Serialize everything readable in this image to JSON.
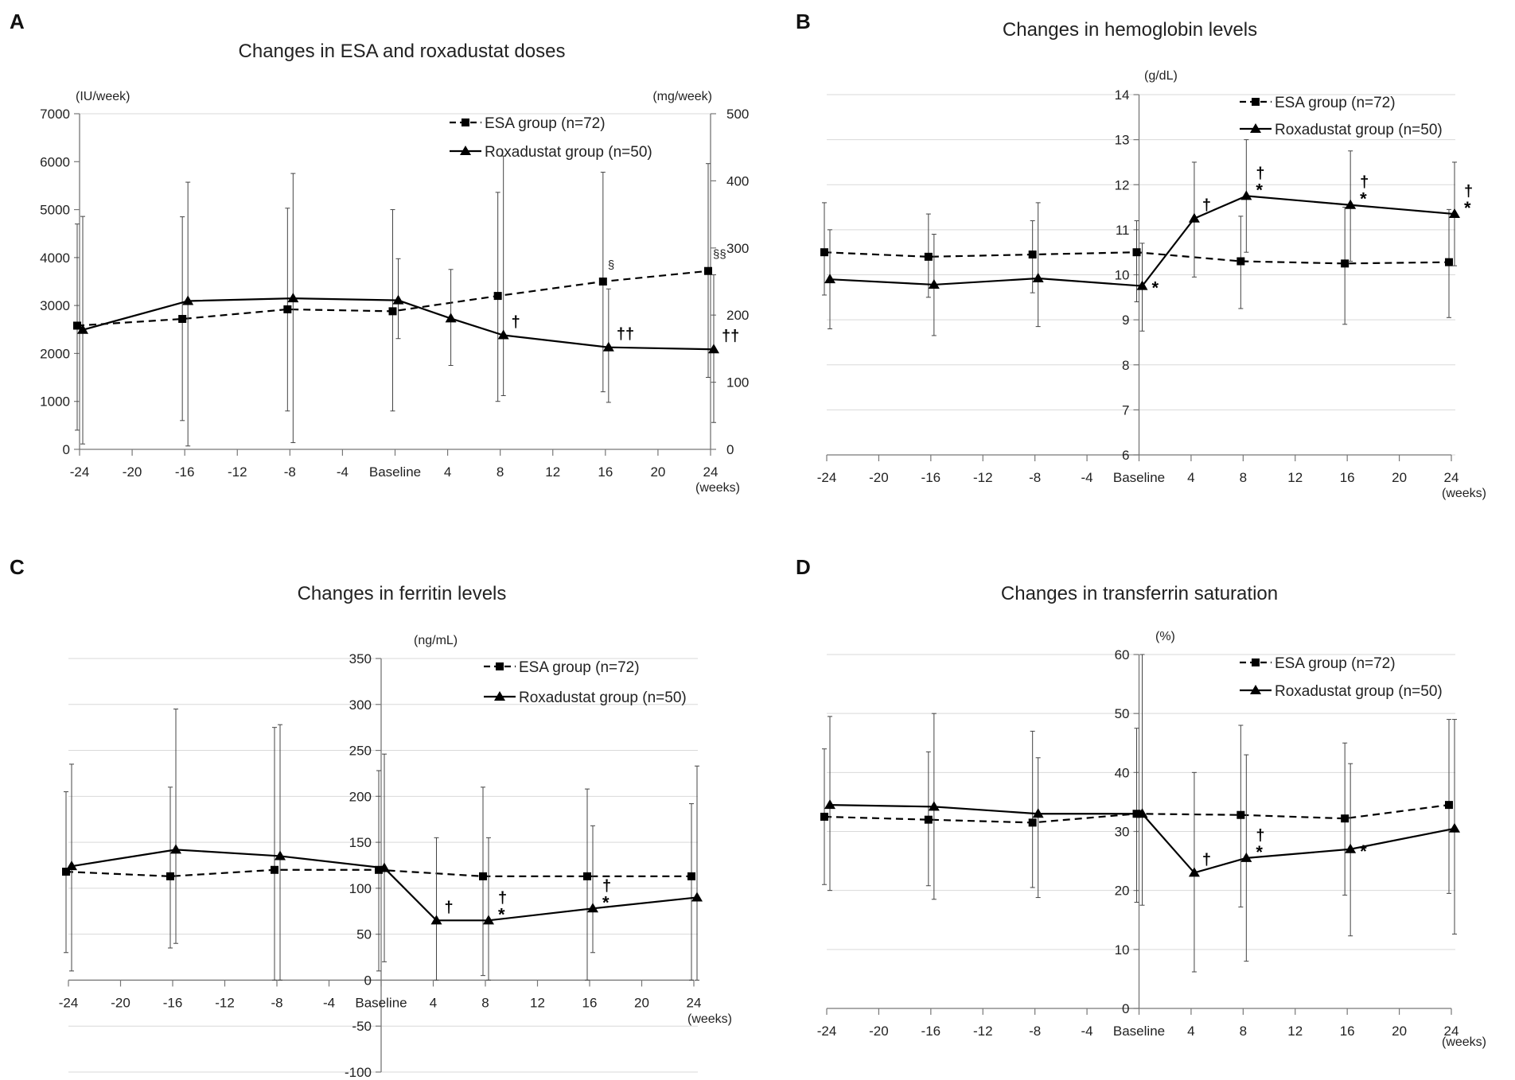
{
  "chart_data": [
    {
      "panel_label": "A",
      "type": "line",
      "title": "Changes in ESA and roxadustat doses",
      "xlabel": "(weeks)",
      "ylabel_left": "(IU/week)",
      "ylabel_right": "(mg/week)",
      "ylim_left": [
        0,
        7000
      ],
      "ylim_right": [
        0,
        500
      ],
      "xlim": [
        -24,
        24
      ],
      "x_ticks": [
        -24,
        -20,
        -16,
        -12,
        -8,
        -4,
        0,
        4,
        8,
        12,
        16,
        20,
        24
      ],
      "x_tick_labels": [
        "-24",
        "-20",
        "-16",
        "-12",
        "-8",
        "-4",
        "Baseline",
        "4",
        "8",
        "12",
        "16",
        "20",
        "24"
      ],
      "y_ticks_left": [
        0,
        1000,
        2000,
        3000,
        4000,
        5000,
        6000,
        7000
      ],
      "y_tick_labels_left": [
        "0",
        "1000",
        "2000",
        "3000",
        "4000",
        "5000",
        "6000",
        "7000"
      ],
      "y_ticks_right": [
        0,
        100,
        200,
        300,
        400,
        500
      ],
      "y_tick_labels_right": [
        "0",
        "100",
        "200",
        "300",
        "400",
        "500"
      ],
      "grid": "none",
      "legend": [
        {
          "label": "ESA group (n=72)",
          "style": "dashed",
          "marker": "square"
        },
        {
          "label": "Roxadustat group (n=50)",
          "style": "solid",
          "marker": "triangle"
        }
      ],
      "series": [
        {
          "name": "ESA group (n=72)",
          "axis": "left",
          "style": "dashed",
          "marker": "square",
          "x": [
            -24,
            -16,
            -8,
            0,
            8,
            16,
            24
          ],
          "values": [
            2580,
            2720,
            2920,
            2880,
            3200,
            3500,
            3720
          ],
          "err_low": [
            400,
            600,
            800,
            800,
            1000,
            1200,
            1500
          ],
          "err_high": [
            4700,
            4850,
            5030,
            5000,
            5360,
            5780,
            5960
          ]
        },
        {
          "name": "Roxadustat group (n=50)",
          "axis": "right",
          "style": "solid",
          "marker": "triangle",
          "x": [
            -24,
            -16,
            -8,
            0,
            4,
            8,
            16,
            24
          ],
          "values": [
            178,
            221,
            225,
            222,
            195,
            170,
            152,
            149
          ],
          "err_low": [
            8,
            5,
            10,
            165,
            125,
            80,
            70,
            40
          ],
          "err_high": [
            347,
            398,
            411,
            284,
            268,
            437,
            239,
            260
          ]
        }
      ],
      "annotations": [
        {
          "text": "†",
          "x": 8,
          "series": "Roxadustat group (n=50)"
        },
        {
          "text": "††",
          "x": 16,
          "series": "Roxadustat group (n=50)"
        },
        {
          "text": "††",
          "x": 24,
          "series": "Roxadustat group (n=50)"
        },
        {
          "text": "§",
          "x": 16,
          "series": "ESA group (n=72)"
        },
        {
          "text": "§§",
          "x": 24,
          "series": "ESA group (n=72)"
        }
      ]
    },
    {
      "panel_label": "B",
      "type": "line",
      "title": "Changes in hemoglobin levels",
      "xlabel": "(weeks)",
      "ylabel_left": "(g/dL)",
      "ylim_left": [
        6,
        14
      ],
      "xlim": [
        -24,
        24
      ],
      "x_ticks": [
        -24,
        -20,
        -16,
        -12,
        -8,
        -4,
        0,
        4,
        8,
        12,
        16,
        20,
        24
      ],
      "x_tick_labels": [
        "-24",
        "-20",
        "-16",
        "-12",
        "-8",
        "-4",
        "Baseline",
        "4",
        "8",
        "12",
        "16",
        "20",
        "24"
      ],
      "y_ticks_left": [
        6,
        7,
        8,
        9,
        10,
        11,
        12,
        13,
        14
      ],
      "y_tick_labels_left": [
        "6",
        "7",
        "8",
        "9",
        "10",
        "11",
        "12",
        "13",
        "14"
      ],
      "grid": "horizontal",
      "legend": [
        {
          "label": "ESA group (n=72)",
          "style": "dashed",
          "marker": "square"
        },
        {
          "label": "Roxadustat group (n=50)",
          "style": "solid",
          "marker": "triangle"
        }
      ],
      "series": [
        {
          "name": "ESA group (n=72)",
          "axis": "left",
          "style": "dashed",
          "marker": "square",
          "x": [
            -24,
            -16,
            -8,
            0,
            8,
            16,
            24
          ],
          "values": [
            10.5,
            10.4,
            10.45,
            10.5,
            10.3,
            10.25,
            10.28
          ],
          "err_low": [
            9.55,
            9.5,
            9.6,
            9.4,
            9.25,
            8.9,
            9.05
          ],
          "err_high": [
            11.6,
            11.35,
            11.2,
            11.2,
            11.3,
            11.5,
            11.45
          ]
        },
        {
          "name": "Roxadustat group (n=50)",
          "axis": "left",
          "style": "solid",
          "marker": "triangle",
          "x": [
            -24,
            -16,
            -8,
            0,
            4,
            8,
            16,
            24
          ],
          "values": [
            9.9,
            9.78,
            9.92,
            9.75,
            11.25,
            11.75,
            11.55,
            11.35
          ],
          "err_low": [
            8.8,
            8.65,
            8.85,
            8.75,
            9.95,
            10.5,
            10.3,
            10.2
          ],
          "err_high": [
            11.0,
            10.9,
            11.6,
            10.7,
            12.5,
            13.0,
            12.75,
            12.5
          ]
        }
      ],
      "annotations": [
        {
          "text": "*",
          "x": 0,
          "series": "Roxadustat group (n=50)"
        },
        {
          "text": "†",
          "x": 4,
          "series": "Roxadustat group (n=50)"
        },
        {
          "text": "†*",
          "x": 8,
          "series": "Roxadustat group (n=50)"
        },
        {
          "text": "†*",
          "x": 16,
          "series": "Roxadustat group (n=50)"
        },
        {
          "text": "†*",
          "x": 24,
          "series": "Roxadustat group (n=50)"
        }
      ]
    },
    {
      "panel_label": "C",
      "type": "line",
      "title": "Changes in ferritin levels",
      "xlabel": "(weeks)",
      "ylabel_left": "(ng/mL)",
      "ylim_left": [
        -100,
        350
      ],
      "xlim": [
        -24,
        24
      ],
      "x_ticks": [
        -24,
        -20,
        -16,
        -12,
        -8,
        -4,
        0,
        4,
        8,
        12,
        16,
        20,
        24
      ],
      "x_tick_labels": [
        "-24",
        "-20",
        "-16",
        "-12",
        "-8",
        "-4",
        "Baseline",
        "4",
        "8",
        "12",
        "16",
        "20",
        "24"
      ],
      "y_ticks_left": [
        -100,
        -50,
        0,
        50,
        100,
        150,
        200,
        250,
        300,
        350
      ],
      "y_tick_labels_left": [
        "-100",
        "-50",
        "0",
        "50",
        "100",
        "150",
        "200",
        "250",
        "300",
        "350"
      ],
      "grid": "horizontal",
      "legend": [
        {
          "label": "ESA group (n=72)",
          "style": "dashed",
          "marker": "square"
        },
        {
          "label": "Roxadustat group (n=50)",
          "style": "solid",
          "marker": "triangle"
        }
      ],
      "series": [
        {
          "name": "ESA group (n=72)",
          "axis": "left",
          "style": "dashed",
          "marker": "square",
          "x": [
            -24,
            -16,
            -8,
            0,
            8,
            16,
            24
          ],
          "values": [
            118,
            113,
            120,
            120,
            113,
            113,
            113
          ],
          "err_low": [
            30,
            35,
            0,
            10,
            5,
            0,
            0
          ],
          "err_high": [
            205,
            210,
            275,
            228,
            210,
            208,
            192
          ]
        },
        {
          "name": "Roxadustat group (n=50)",
          "axis": "left",
          "style": "solid",
          "marker": "triangle",
          "x": [
            -24,
            -16,
            -8,
            0,
            4,
            8,
            16,
            24
          ],
          "values": [
            124,
            142,
            135,
            122,
            65,
            65,
            78,
            90
          ],
          "err_low": [
            10,
            40,
            0,
            20,
            0,
            0,
            30,
            0
          ],
          "err_high": [
            235,
            295,
            278,
            246,
            155,
            155,
            168,
            233
          ]
        }
      ],
      "annotations": [
        {
          "text": "†",
          "x": 4,
          "series": "Roxadustat group (n=50)"
        },
        {
          "text": "†*",
          "x": 8,
          "series": "Roxadustat group (n=50)"
        },
        {
          "text": "†*",
          "x": 16,
          "series": "Roxadustat group (n=50)"
        }
      ]
    },
    {
      "panel_label": "D",
      "type": "line",
      "title": "Changes in transferrin saturation",
      "xlabel": "(weeks)",
      "ylabel_left": "(%)",
      "ylim_left": [
        0,
        60
      ],
      "xlim": [
        -24,
        24
      ],
      "x_ticks": [
        -24,
        -20,
        -16,
        -12,
        -8,
        -4,
        0,
        4,
        8,
        12,
        16,
        20,
        24
      ],
      "x_tick_labels": [
        "-24",
        "-20",
        "-16",
        "-12",
        "-8",
        "-4",
        "Baseline",
        "4",
        "8",
        "12",
        "16",
        "20",
        "24"
      ],
      "y_ticks_left": [
        0,
        10,
        20,
        30,
        40,
        50,
        60
      ],
      "y_tick_labels_left": [
        "0",
        "10",
        "20",
        "30",
        "40",
        "50",
        "60"
      ],
      "grid": "horizontal",
      "legend": [
        {
          "label": "ESA group (n=72)",
          "style": "dashed",
          "marker": "square"
        },
        {
          "label": "Roxadustat group (n=50)",
          "style": "solid",
          "marker": "triangle"
        }
      ],
      "series": [
        {
          "name": "ESA group (n=72)",
          "axis": "left",
          "style": "dashed",
          "marker": "square",
          "x": [
            -24,
            -16,
            -8,
            0,
            8,
            16,
            24
          ],
          "values": [
            32.5,
            32,
            31.5,
            33,
            32.8,
            32.2,
            34.5
          ],
          "err_low": [
            21,
            20.8,
            20.5,
            18,
            17.2,
            19.2,
            19.5
          ],
          "err_high": [
            44,
            43.5,
            47,
            47.5,
            48,
            45,
            49
          ]
        },
        {
          "name": "Roxadustat group (n=50)",
          "axis": "left",
          "style": "solid",
          "marker": "triangle",
          "x": [
            -24,
            -16,
            -8,
            0,
            4,
            8,
            16,
            24
          ],
          "values": [
            34.5,
            34.2,
            33,
            33,
            23,
            25.5,
            27,
            30.5
          ],
          "err_low": [
            20,
            18.5,
            18.8,
            17.5,
            6.2,
            8,
            12.3,
            12.6
          ],
          "err_high": [
            49.5,
            50,
            42.5,
            60,
            40,
            43,
            41.5,
            49
          ]
        }
      ],
      "annotations": [
        {
          "text": "†",
          "x": 4,
          "series": "Roxadustat group (n=50)"
        },
        {
          "text": "†*",
          "x": 8,
          "series": "Roxadustat group (n=50)"
        },
        {
          "text": "*",
          "x": 16,
          "series": "Roxadustat group (n=50)"
        }
      ]
    }
  ]
}
